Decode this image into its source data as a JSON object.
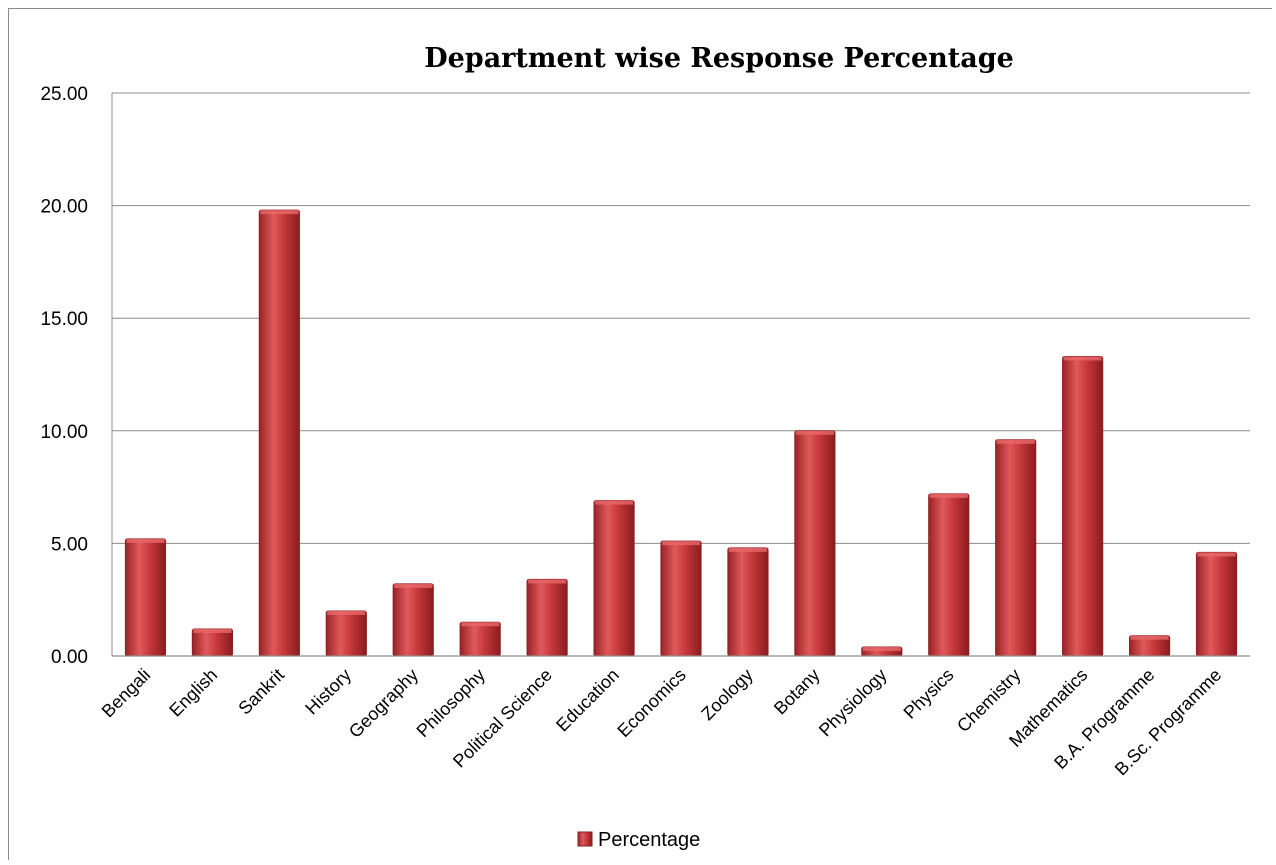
{
  "chart_data": {
    "type": "bar",
    "title": "Department wise Response Percentage",
    "xlabel": "",
    "ylabel": "",
    "categories": [
      "Bengali",
      "English",
      "Sankrit",
      "History",
      "Geography",
      "Philosophy",
      "Political Science",
      "Education",
      "Economics",
      "Zoology",
      "Botany",
      "Physiology",
      "Physics",
      "Chemistry",
      "Mathematics",
      "B.A. Programme",
      "B.Sc. Programme"
    ],
    "series": [
      {
        "name": "Percentage",
        "values": [
          5.2,
          1.2,
          19.8,
          2.0,
          3.2,
          1.5,
          3.4,
          6.9,
          5.1,
          4.8,
          10.0,
          0.4,
          7.2,
          9.6,
          13.3,
          0.9,
          4.6
        ]
      }
    ],
    "ylim": [
      0,
      25
    ],
    "yticks": [
      "0.00",
      "5.00",
      "10.00",
      "15.00",
      "20.00",
      "25.00"
    ],
    "grid": true,
    "legend_position": "bottom",
    "colors": {
      "bar": "#c0393b",
      "bar_dark": "#8e1f22",
      "bar_light": "#e8686a",
      "grid": "#8c8c8c"
    }
  }
}
